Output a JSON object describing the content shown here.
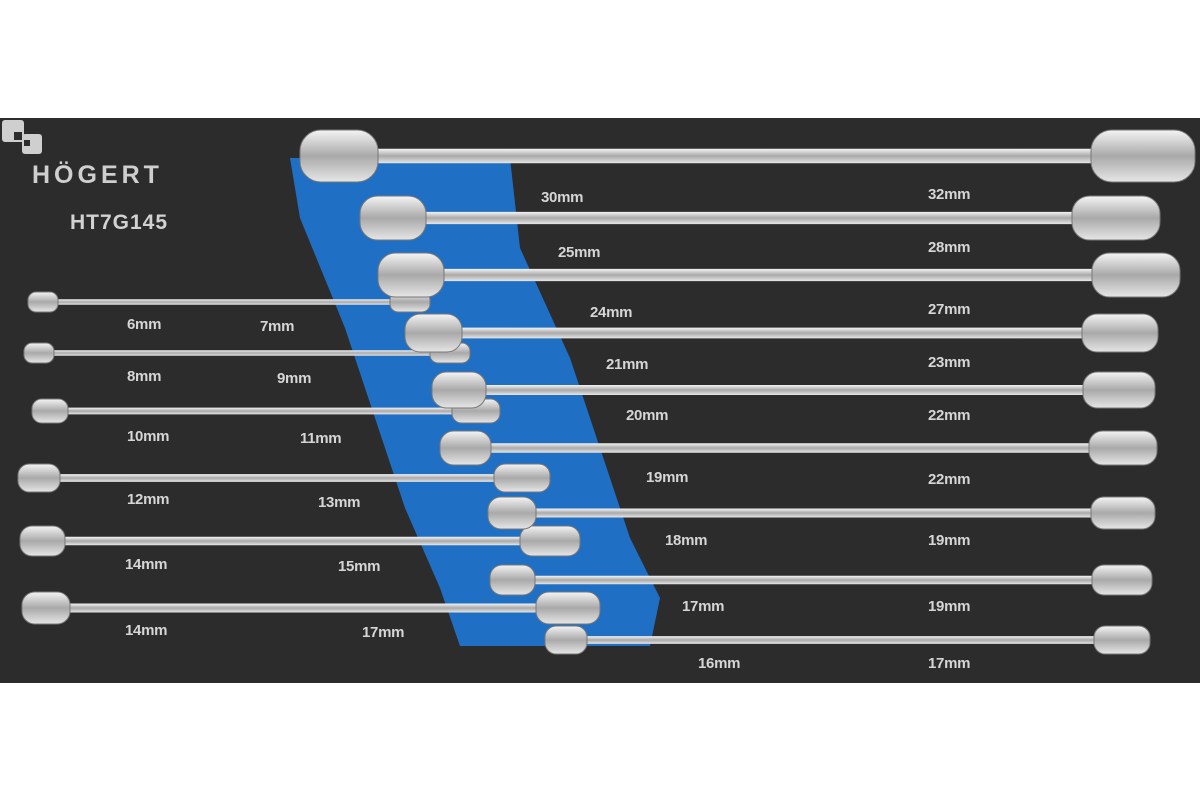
{
  "brand": "HÖGERT",
  "model": "HT7G145",
  "colors": {
    "tray": "#2c2c2d",
    "insert": "#1f6fc4",
    "steel": "#d8d8d8"
  },
  "left_labels": [
    "6mm",
    "7mm",
    "8mm",
    "9mm",
    "10mm",
    "11mm",
    "12mm",
    "13mm",
    "14mm",
    "15mm",
    "14mm",
    "17mm"
  ],
  "right_labels": [
    "30mm",
    "32mm",
    "25mm",
    "28mm",
    "24mm",
    "27mm",
    "21mm",
    "23mm",
    "20mm",
    "22mm",
    "19mm",
    "22mm",
    "18mm",
    "19mm",
    "17mm",
    "19mm",
    "16mm",
    "17mm"
  ]
}
